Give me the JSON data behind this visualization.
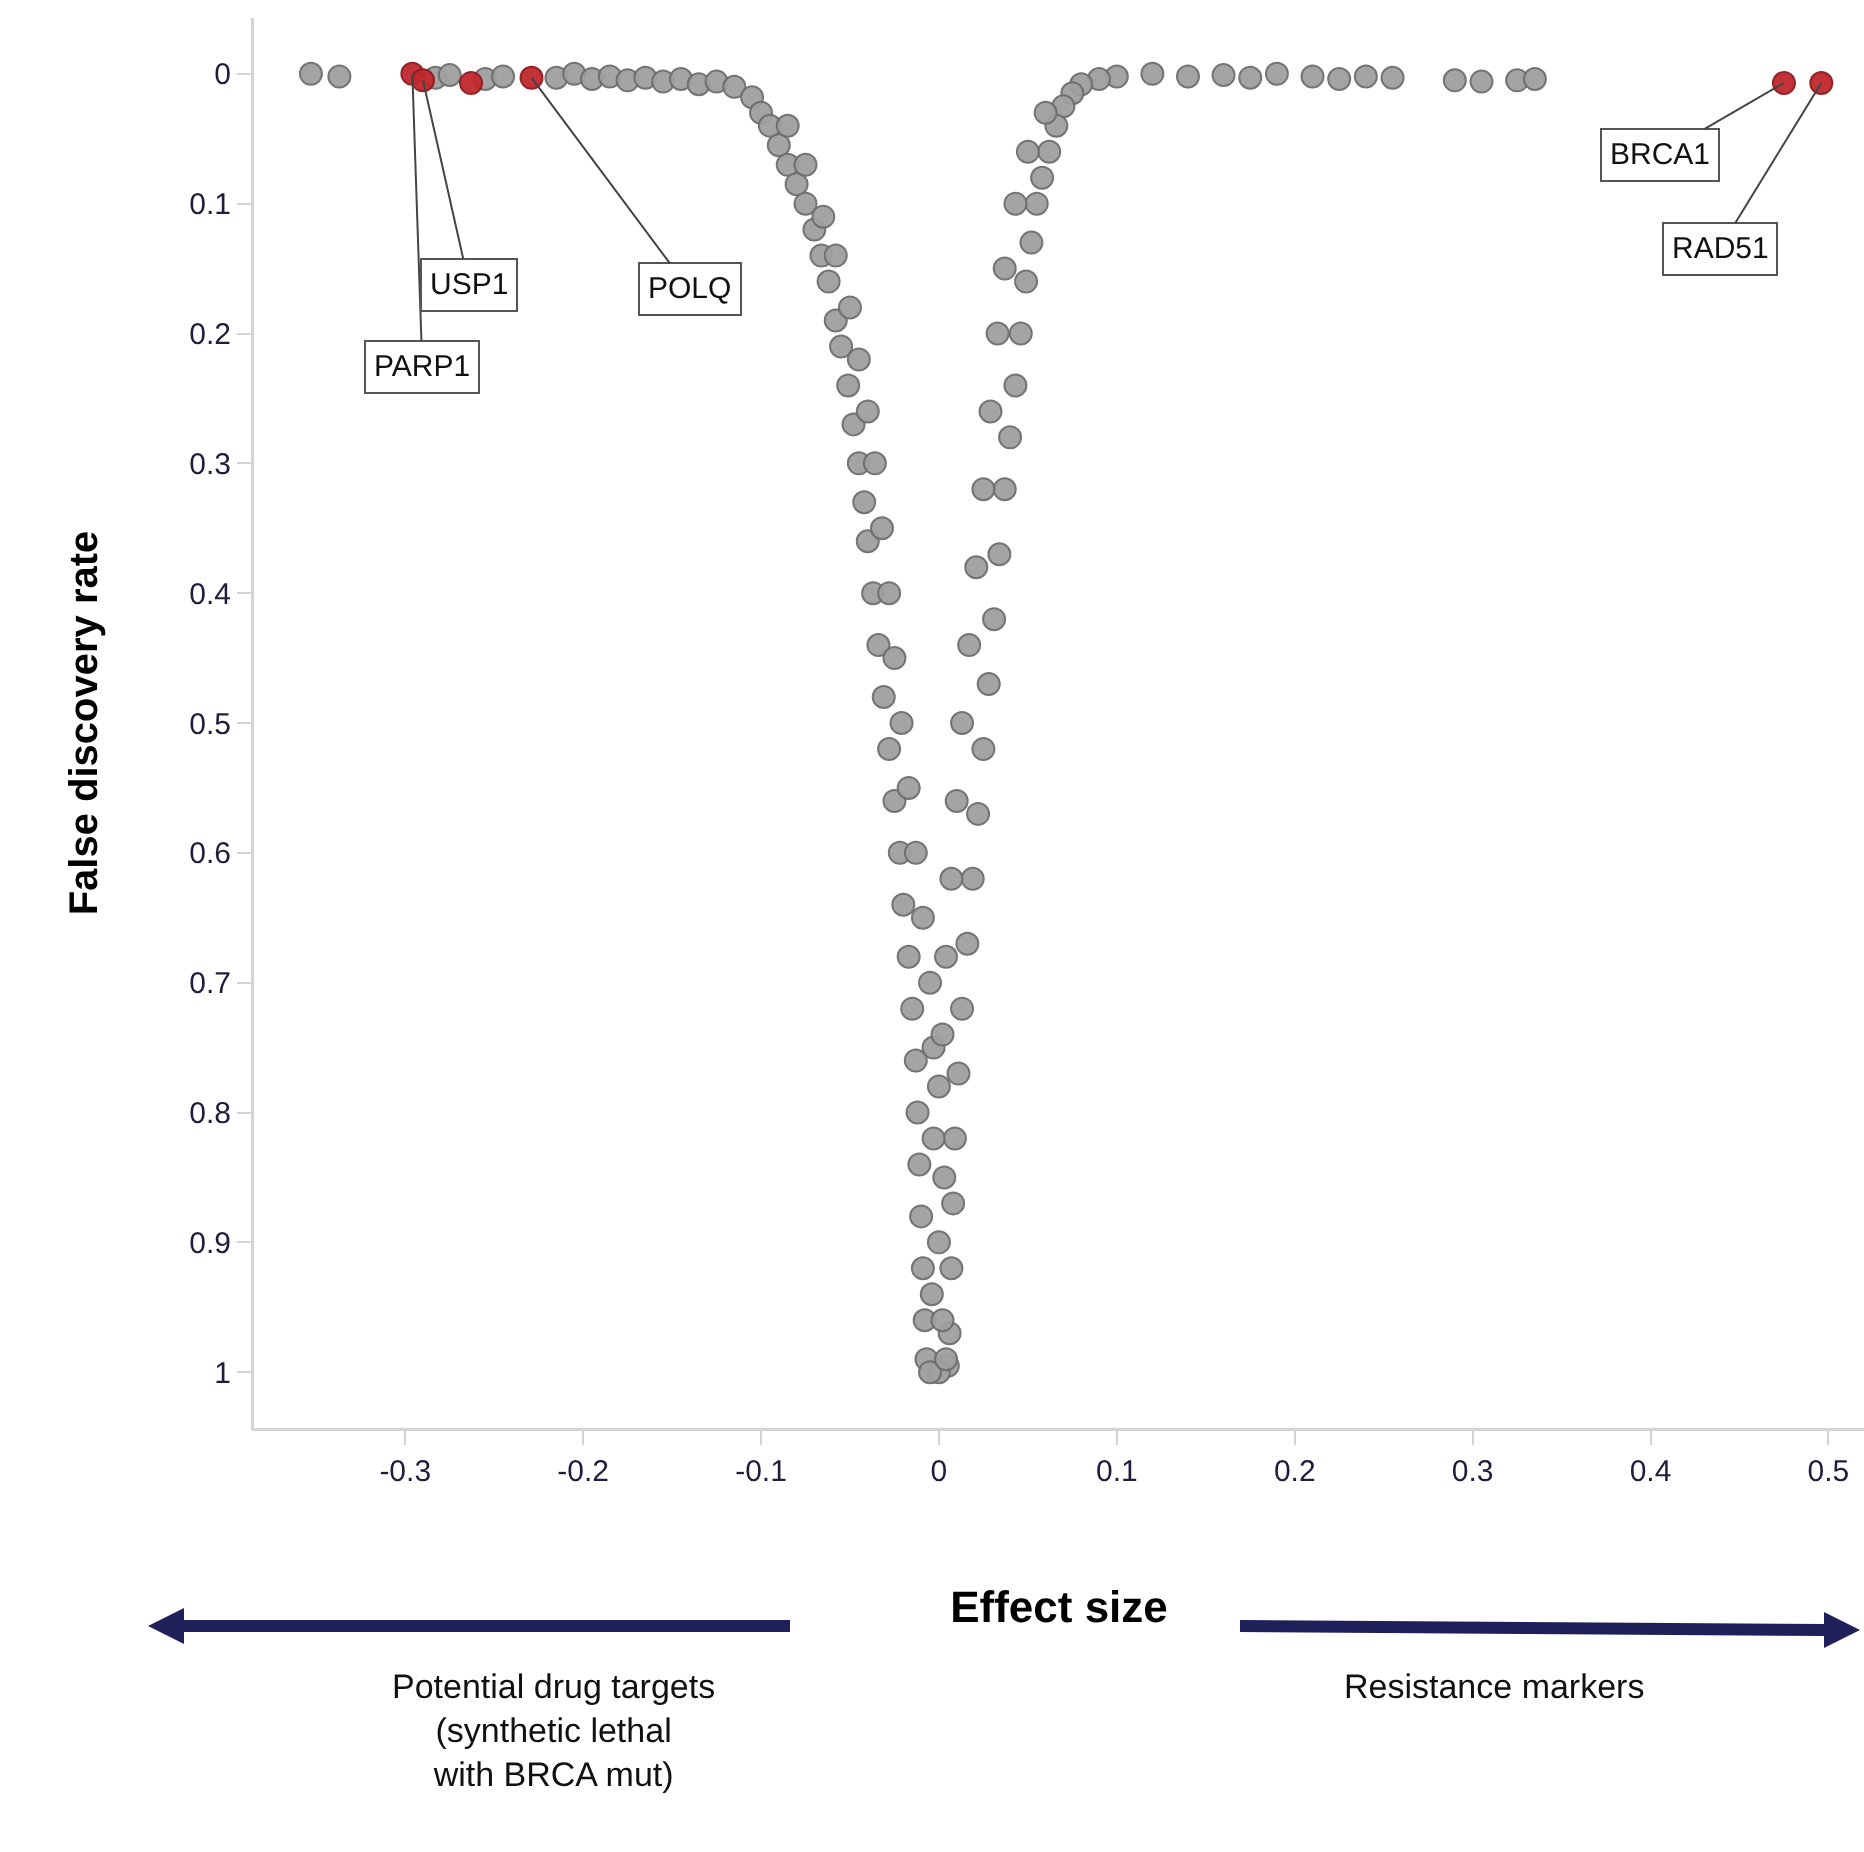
{
  "chart_data": {
    "type": "scatter",
    "xlabel": "Effect size",
    "ylabel": "False discovery rate",
    "xlim": [
      -0.385,
      0.52
    ],
    "xticks": [
      -0.3,
      -0.2,
      -0.1,
      0,
      0.1,
      0.2,
      0.3,
      0.4,
      0.5
    ],
    "ylim": [
      1.043,
      -0.043
    ],
    "yticks": [
      0,
      0.1,
      0.2,
      0.3,
      0.4,
      0.5,
      0.6,
      0.7,
      0.8,
      0.9,
      1
    ],
    "grid": false,
    "marker": "circle",
    "series": [
      {
        "color": "#a0a0a0",
        "x": [
          -0.353,
          -0.337,
          -0.283,
          -0.275,
          -0.255,
          -0.245,
          -0.215,
          -0.205,
          -0.195,
          -0.185,
          -0.175,
          -0.165,
          -0.155,
          -0.145,
          -0.135,
          -0.125,
          -0.115,
          -0.105,
          -0.1,
          -0.095,
          -0.09,
          -0.085,
          -0.08,
          -0.075,
          -0.07,
          -0.066,
          -0.062,
          -0.058,
          -0.055,
          -0.051,
          -0.048,
          -0.045,
          -0.042,
          -0.04,
          -0.037,
          -0.034,
          -0.031,
          -0.028,
          -0.025,
          -0.022,
          -0.02,
          -0.017,
          -0.015,
          -0.013,
          -0.012,
          -0.011,
          -0.01,
          -0.009,
          -0.008,
          -0.007,
          -0.085,
          -0.075,
          -0.065,
          -0.058,
          -0.05,
          -0.045,
          -0.04,
          -0.036,
          -0.032,
          -0.028,
          -0.025,
          -0.021,
          -0.017,
          -0.013,
          -0.009,
          -0.005,
          -0.003,
          0.12,
          0.14,
          0.16,
          0.175,
          0.19,
          0.21,
          0.225,
          0.24,
          0.255,
          0.29,
          0.305,
          0.325,
          0.335,
          0.1,
          0.09,
          0.08,
          0.075,
          0.07,
          0.066,
          0.062,
          0.058,
          0.055,
          0.052,
          0.049,
          0.046,
          0.043,
          0.04,
          0.037,
          0.034,
          0.031,
          0.028,
          0.025,
          0.022,
          0.019,
          0.016,
          0.013,
          0.011,
          0.009,
          0.008,
          0.007,
          0.006,
          0.005,
          0.06,
          0.05,
          0.043,
          0.037,
          0.033,
          0.029,
          0.025,
          0.021,
          0.017,
          0.013,
          0.01,
          0.007,
          0.004,
          0.002,
          0.0,
          -0.003,
          0.003,
          0.0,
          -0.004,
          0.002,
          0.0,
          -0.005,
          0.004
        ],
        "values": [
          0.0,
          0.002,
          0.003,
          0.001,
          0.004,
          0.002,
          0.003,
          0.0,
          0.004,
          0.002,
          0.005,
          0.003,
          0.006,
          0.004,
          0.008,
          0.006,
          0.01,
          0.018,
          0.03,
          0.04,
          0.055,
          0.07,
          0.085,
          0.1,
          0.12,
          0.14,
          0.16,
          0.19,
          0.21,
          0.24,
          0.27,
          0.3,
          0.33,
          0.36,
          0.4,
          0.44,
          0.48,
          0.52,
          0.56,
          0.6,
          0.64,
          0.68,
          0.72,
          0.76,
          0.8,
          0.84,
          0.88,
          0.92,
          0.96,
          0.99,
          0.04,
          0.07,
          0.11,
          0.14,
          0.18,
          0.22,
          0.26,
          0.3,
          0.35,
          0.4,
          0.45,
          0.5,
          0.55,
          0.6,
          0.65,
          0.7,
          0.75,
          0.0,
          0.002,
          0.001,
          0.003,
          0.0,
          0.002,
          0.004,
          0.002,
          0.003,
          0.005,
          0.006,
          0.005,
          0.004,
          0.002,
          0.004,
          0.008,
          0.015,
          0.025,
          0.04,
          0.06,
          0.08,
          0.1,
          0.13,
          0.16,
          0.2,
          0.24,
          0.28,
          0.32,
          0.37,
          0.42,
          0.47,
          0.52,
          0.57,
          0.62,
          0.67,
          0.72,
          0.77,
          0.82,
          0.87,
          0.92,
          0.97,
          0.995,
          0.03,
          0.06,
          0.1,
          0.15,
          0.2,
          0.26,
          0.32,
          0.38,
          0.44,
          0.5,
          0.56,
          0.62,
          0.68,
          0.74,
          0.78,
          0.82,
          0.85,
          0.9,
          0.94,
          0.96,
          1.0,
          1.0,
          0.99
        ]
      },
      {
        "color": "#c0282d",
        "x": [
          -0.296,
          -0.29,
          -0.263,
          -0.229,
          0.475,
          0.496
        ],
        "values": [
          0.0,
          0.005,
          0.007,
          0.003,
          0.007,
          0.007
        ]
      }
    ],
    "annotations": [
      {
        "text": "PARP1",
        "x": -0.296,
        "y": 0.0
      },
      {
        "text": "USP1",
        "x": -0.29,
        "y": 0.005
      },
      {
        "text": "POLQ",
        "x": -0.229,
        "y": 0.003
      },
      {
        "text": "BRCA1",
        "x": 0.475,
        "y": 0.007
      },
      {
        "text": "RAD51",
        "x": 0.496,
        "y": 0.007
      },
      "Potential drug targets\n(synthetic lethal\nwith BRCA mut)",
      "Resistance markers"
    ]
  }
}
